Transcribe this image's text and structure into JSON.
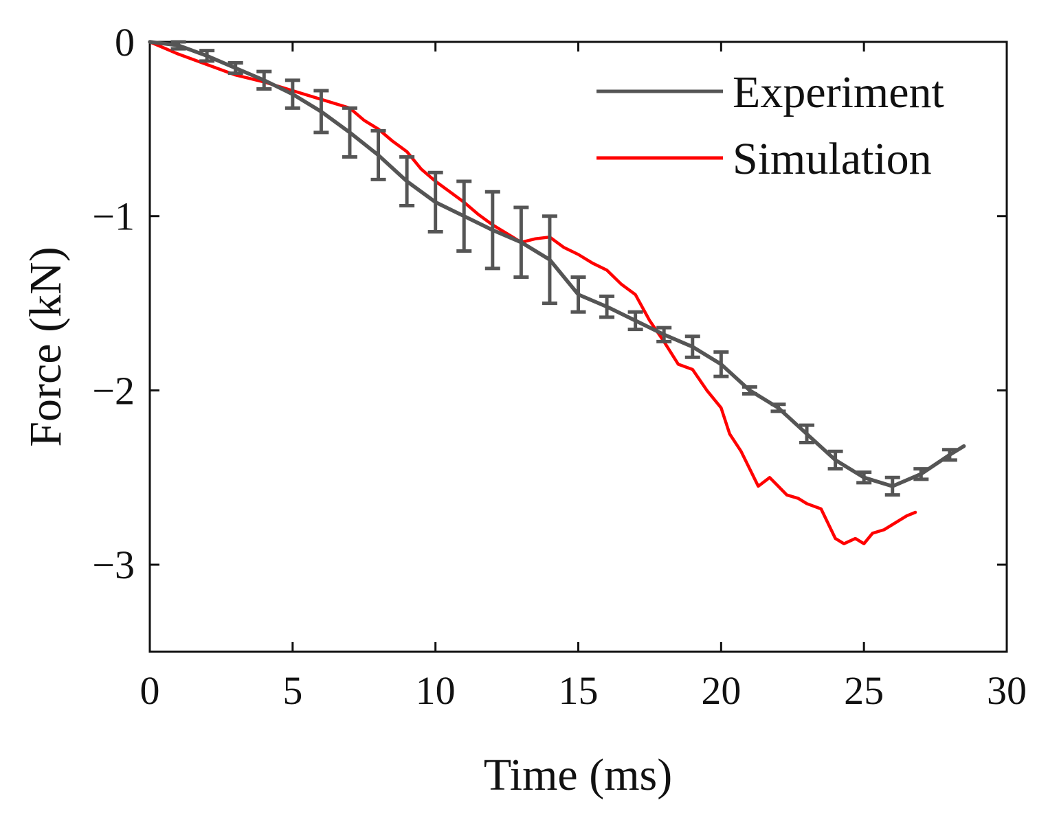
{
  "chart_data": {
    "type": "line",
    "title": "",
    "xlabel": "Time (ms)",
    "ylabel": "Force (kN)",
    "xlim": [
      0,
      30
    ],
    "ylim": [
      -3.5,
      0
    ],
    "xticks": [
      0,
      5,
      10,
      15,
      20,
      25,
      30
    ],
    "yticks": [
      0,
      -1,
      -2,
      -3
    ],
    "xtick_labels": [
      "0",
      "5",
      "10",
      "15",
      "20",
      "25",
      "30"
    ],
    "ytick_labels": [
      "0",
      "−1",
      "−2",
      "−3"
    ],
    "grid": false,
    "legend_position": "top-right",
    "series": [
      {
        "name": "Experiment",
        "color": "#555555",
        "x": [
          0,
          1,
          2,
          3,
          4,
          5,
          6,
          7,
          8,
          9,
          10,
          11,
          12,
          13,
          14,
          15,
          16,
          17,
          18,
          19,
          20,
          21,
          22,
          23,
          24,
          25,
          26,
          27,
          28,
          28.5
        ],
        "y": [
          0,
          -0.02,
          -0.08,
          -0.15,
          -0.22,
          -0.3,
          -0.4,
          -0.52,
          -0.65,
          -0.8,
          -0.92,
          -1.0,
          -1.08,
          -1.15,
          -1.25,
          -1.45,
          -1.52,
          -1.6,
          -1.68,
          -1.75,
          -1.85,
          -2.0,
          -2.1,
          -2.25,
          -2.4,
          -2.5,
          -2.55,
          -2.48,
          -2.37,
          -2.32
        ],
        "error_x": [
          1,
          2,
          3,
          4,
          5,
          6,
          7,
          8,
          9,
          10,
          11,
          12,
          13,
          14,
          15,
          16,
          17,
          18,
          19,
          20,
          21,
          22,
          23,
          24,
          25,
          26,
          27,
          28
        ],
        "error_y": [
          0.02,
          0.03,
          0.03,
          0.05,
          0.08,
          0.12,
          0.14,
          0.14,
          0.14,
          0.17,
          0.2,
          0.22,
          0.2,
          0.25,
          0.1,
          0.06,
          0.05,
          0.04,
          0.06,
          0.07,
          0.02,
          0.02,
          0.05,
          0.05,
          0.03,
          0.05,
          0.03,
          0.03
        ]
      },
      {
        "name": "Simulation",
        "color": "#ff0000",
        "x": [
          0,
          1,
          2,
          3,
          4,
          5,
          6,
          7,
          7.5,
          8,
          8.5,
          9,
          9.5,
          10,
          10.5,
          11,
          11.5,
          12,
          12.5,
          13,
          13.5,
          14,
          14.5,
          15,
          15.5,
          16,
          16.5,
          17,
          17.5,
          18,
          18.5,
          19,
          19.5,
          20,
          20.3,
          20.7,
          21,
          21.3,
          21.7,
          22,
          22.3,
          22.7,
          23,
          23.5,
          24,
          24.3,
          24.7,
          25,
          25.3,
          25.7,
          26,
          26.5,
          26.8
        ],
        "y": [
          0,
          -0.07,
          -0.13,
          -0.19,
          -0.23,
          -0.28,
          -0.33,
          -0.38,
          -0.45,
          -0.5,
          -0.57,
          -0.63,
          -0.73,
          -0.8,
          -0.86,
          -0.92,
          -0.99,
          -1.05,
          -1.1,
          -1.15,
          -1.13,
          -1.12,
          -1.18,
          -1.22,
          -1.27,
          -1.31,
          -1.39,
          -1.45,
          -1.6,
          -1.72,
          -1.85,
          -1.88,
          -2.0,
          -2.1,
          -2.25,
          -2.35,
          -2.45,
          -2.55,
          -2.5,
          -2.55,
          -2.6,
          -2.62,
          -2.65,
          -2.68,
          -2.85,
          -2.88,
          -2.85,
          -2.88,
          -2.82,
          -2.8,
          -2.77,
          -2.72,
          -2.7
        ]
      }
    ]
  }
}
